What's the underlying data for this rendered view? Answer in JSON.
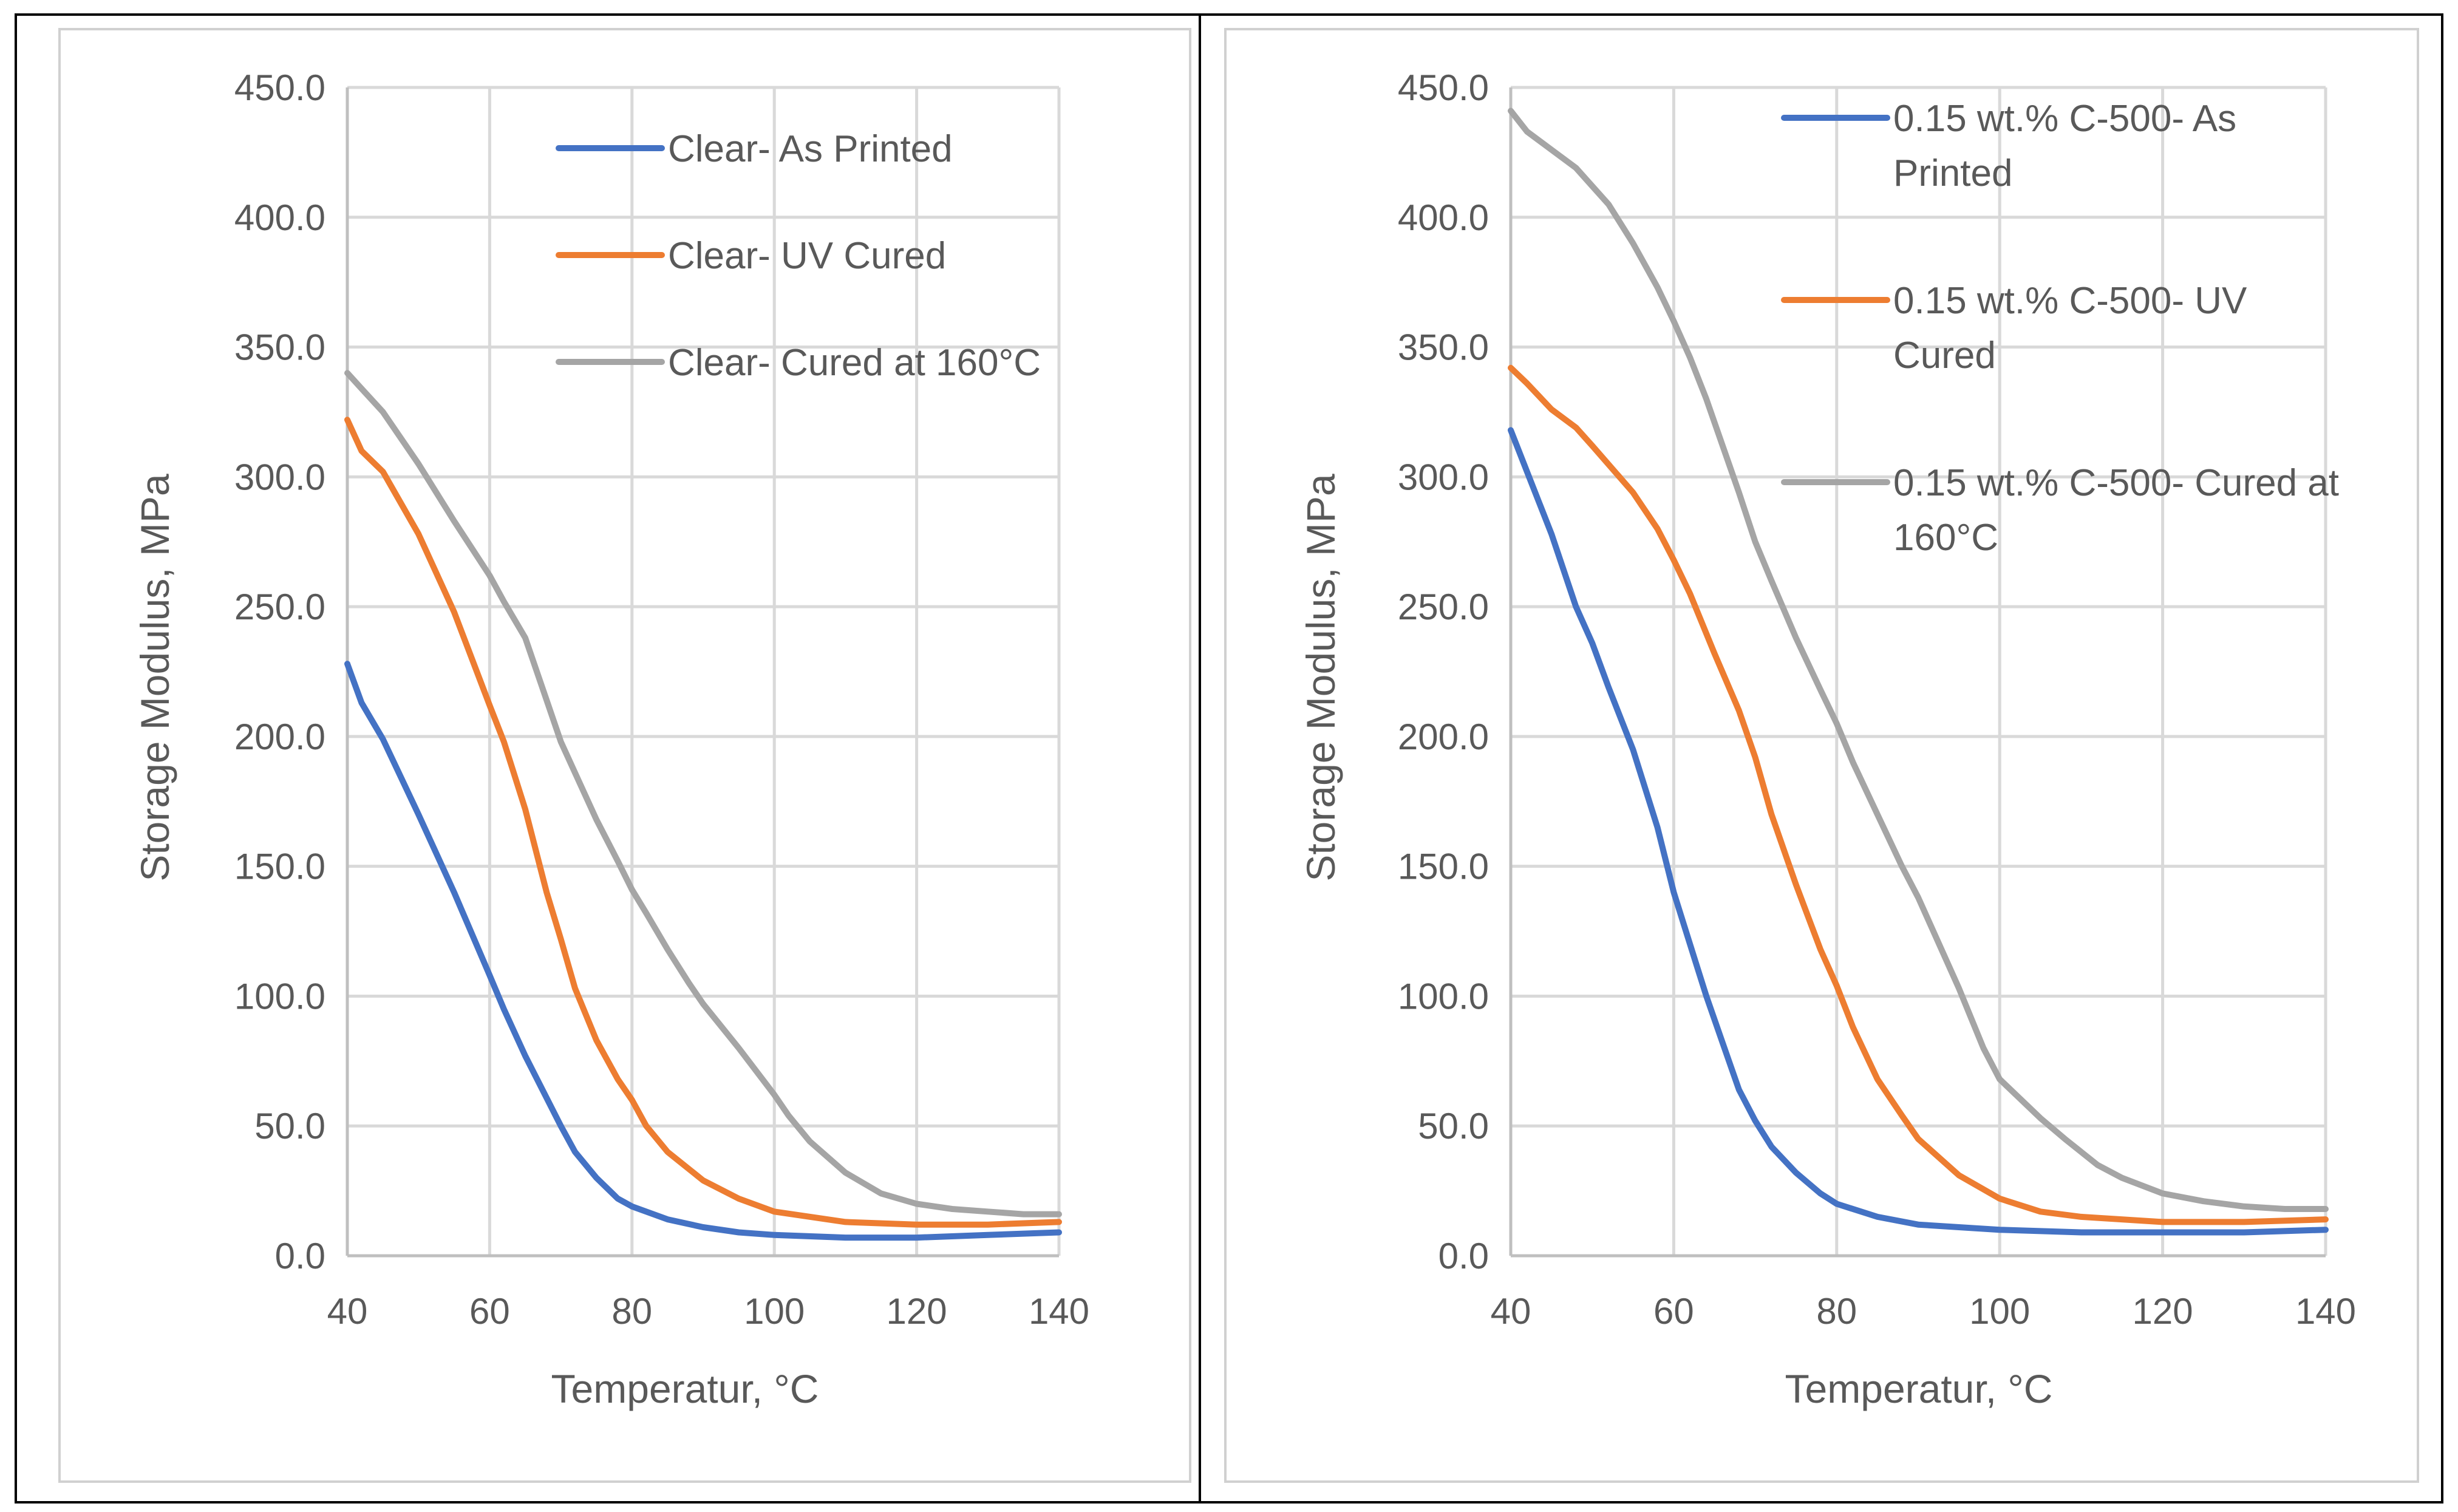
{
  "chart_data": [
    {
      "type": "line",
      "title": "",
      "xlabel": "Temperatur, °C",
      "ylabel": "Storage Modulus, MPa",
      "xlim": [
        40,
        140
      ],
      "ylim": [
        0,
        450
      ],
      "xticks": [
        "40",
        "60",
        "80",
        "100",
        "120",
        "140"
      ],
      "yticks": [
        "0.0",
        "50.0",
        "100.0",
        "150.0",
        "200.0",
        "250.0",
        "300.0",
        "350.0",
        "400.0",
        "450.0"
      ],
      "legend_position": "top-right",
      "series": [
        {
          "name": "Clear- As Printed",
          "color": "#4472c4",
          "points": [
            [
              40,
              228
            ],
            [
              42,
              213
            ],
            [
              45,
              199
            ],
            [
              50,
              170
            ],
            [
              55,
              140
            ],
            [
              60,
              108
            ],
            [
              62,
              95
            ],
            [
              65,
              77
            ],
            [
              70,
              50
            ],
            [
              72,
              40
            ],
            [
              75,
              30
            ],
            [
              78,
              22
            ],
            [
              80,
              19
            ],
            [
              85,
              14
            ],
            [
              90,
              11
            ],
            [
              95,
              9
            ],
            [
              100,
              8
            ],
            [
              110,
              7
            ],
            [
              120,
              7
            ],
            [
              130,
              8
            ],
            [
              140,
              9
            ]
          ]
        },
        {
          "name": "Clear- UV Cured",
          "color": "#ed7d31",
          "points": [
            [
              40,
              322
            ],
            [
              42,
              310
            ],
            [
              45,
              302
            ],
            [
              50,
              278
            ],
            [
              55,
              248
            ],
            [
              60,
              212
            ],
            [
              62,
              198
            ],
            [
              65,
              172
            ],
            [
              68,
              140
            ],
            [
              70,
              122
            ],
            [
              72,
              103
            ],
            [
              75,
              83
            ],
            [
              78,
              68
            ],
            [
              80,
              60
            ],
            [
              82,
              50
            ],
            [
              85,
              40
            ],
            [
              90,
              29
            ],
            [
              95,
              22
            ],
            [
              100,
              17
            ],
            [
              110,
              13
            ],
            [
              120,
              12
            ],
            [
              130,
              12
            ],
            [
              140,
              13
            ]
          ]
        },
        {
          "name": "Clear- Cured at 160°C",
          "color": "#a5a5a5",
          "points": [
            [
              40,
              340
            ],
            [
              42,
              334
            ],
            [
              45,
              325
            ],
            [
              50,
              305
            ],
            [
              55,
              283
            ],
            [
              60,
              262
            ],
            [
              62,
              252
            ],
            [
              65,
              238
            ],
            [
              68,
              214
            ],
            [
              70,
              198
            ],
            [
              72,
              186
            ],
            [
              75,
              168
            ],
            [
              78,
              152
            ],
            [
              80,
              141
            ],
            [
              82,
              132
            ],
            [
              85,
              118
            ],
            [
              88,
              105
            ],
            [
              90,
              97
            ],
            [
              95,
              80
            ],
            [
              100,
              62
            ],
            [
              102,
              54
            ],
            [
              105,
              44
            ],
            [
              110,
              32
            ],
            [
              115,
              24
            ],
            [
              120,
              20
            ],
            [
              125,
              18
            ],
            [
              130,
              17
            ],
            [
              135,
              16
            ],
            [
              140,
              16
            ]
          ]
        }
      ]
    },
    {
      "type": "line",
      "title": "",
      "xlabel": "Temperatur, °C",
      "ylabel": "Storage Modulus, MPa",
      "xlim": [
        40,
        140
      ],
      "ylim": [
        0,
        450
      ],
      "xticks": [
        "40",
        "60",
        "80",
        "100",
        "120",
        "140"
      ],
      "yticks": [
        "0.0",
        "50.0",
        "100.0",
        "150.0",
        "200.0",
        "250.0",
        "300.0",
        "350.0",
        "400.0",
        "450.0"
      ],
      "legend_position": "top-right",
      "series": [
        {
          "name": "0.15 wt.% C-500- As Printed",
          "legend_lines": [
            "0.15 wt.% C-500- As",
            "Printed"
          ],
          "color": "#4472c4",
          "points": [
            [
              40,
              318
            ],
            [
              42,
              302
            ],
            [
              45,
              278
            ],
            [
              48,
              250
            ],
            [
              50,
              236
            ],
            [
              52,
              219
            ],
            [
              55,
              195
            ],
            [
              58,
              165
            ],
            [
              60,
              140
            ],
            [
              62,
              120
            ],
            [
              64,
              100
            ],
            [
              66,
              82
            ],
            [
              68,
              64
            ],
            [
              70,
              52
            ],
            [
              72,
              42
            ],
            [
              75,
              32
            ],
            [
              78,
              24
            ],
            [
              80,
              20
            ],
            [
              85,
              15
            ],
            [
              90,
              12
            ],
            [
              95,
              11
            ],
            [
              100,
              10
            ],
            [
              110,
              9
            ],
            [
              120,
              9
            ],
            [
              130,
              9
            ],
            [
              140,
              10
            ]
          ]
        },
        {
          "name": "0.15 wt.% C-500- UV Cured",
          "legend_lines": [
            "0.15 wt.% C-500- UV",
            "Cured"
          ],
          "color": "#ed7d31",
          "points": [
            [
              40,
              342
            ],
            [
              42,
              336
            ],
            [
              45,
              326
            ],
            [
              48,
              319
            ],
            [
              50,
              312
            ],
            [
              55,
              294
            ],
            [
              58,
              280
            ],
            [
              60,
              268
            ],
            [
              62,
              255
            ],
            [
              65,
              232
            ],
            [
              68,
              210
            ],
            [
              70,
              192
            ],
            [
              72,
              170
            ],
            [
              75,
              143
            ],
            [
              78,
              118
            ],
            [
              80,
              104
            ],
            [
              82,
              88
            ],
            [
              85,
              68
            ],
            [
              88,
              54
            ],
            [
              90,
              45
            ],
            [
              95,
              31
            ],
            [
              100,
              22
            ],
            [
              105,
              17
            ],
            [
              110,
              15
            ],
            [
              120,
              13
            ],
            [
              130,
              13
            ],
            [
              140,
              14
            ]
          ]
        },
        {
          "name": "0.15 wt.% C-500- Cured at 160°C",
          "legend_lines": [
            "0.15 wt.% C-500- Cured at",
            "160°C"
          ],
          "color": "#a5a5a5",
          "points": [
            [
              40,
              441
            ],
            [
              42,
              433
            ],
            [
              45,
              426
            ],
            [
              48,
              419
            ],
            [
              50,
              412
            ],
            [
              52,
              405
            ],
            [
              55,
              390
            ],
            [
              58,
              373
            ],
            [
              60,
              360
            ],
            [
              62,
              346
            ],
            [
              64,
              330
            ],
            [
              66,
              312
            ],
            [
              68,
              294
            ],
            [
              70,
              275
            ],
            [
              72,
              260
            ],
            [
              75,
              238
            ],
            [
              78,
              218
            ],
            [
              80,
              205
            ],
            [
              82,
              190
            ],
            [
              85,
              170
            ],
            [
              88,
              150
            ],
            [
              90,
              138
            ],
            [
              95,
              103
            ],
            [
              98,
              80
            ],
            [
              100,
              68
            ],
            [
              102,
              62
            ],
            [
              105,
              53
            ],
            [
              108,
              45
            ],
            [
              110,
              40
            ],
            [
              112,
              35
            ],
            [
              115,
              30
            ],
            [
              120,
              24
            ],
            [
              125,
              21
            ],
            [
              130,
              19
            ],
            [
              135,
              18
            ],
            [
              140,
              18
            ]
          ]
        }
      ]
    }
  ]
}
